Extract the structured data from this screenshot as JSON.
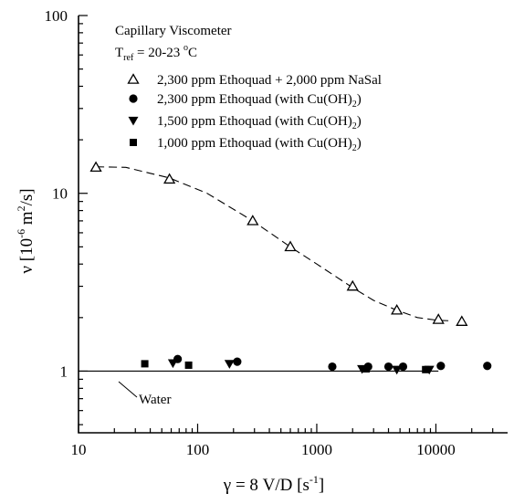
{
  "chart_data": {
    "type": "scatter",
    "x_scale": "log",
    "y_scale": "log",
    "xlim": [
      10,
      40000
    ],
    "ylim": [
      0.45,
      100
    ],
    "x_ticks": [
      10,
      100,
      1000,
      10000
    ],
    "x_tick_labels": [
      "10",
      "100",
      "1000",
      "10000"
    ],
    "y_ticks": [
      1,
      10,
      100
    ],
    "y_tick_labels": [
      "1",
      "10",
      "100"
    ],
    "xlabel": {
      "main": "γ = 8 V/D [s",
      "sup": "-1",
      "close": "]"
    },
    "ylabel": {
      "main": "ν  [10",
      "sup": "-6",
      "mid": " m",
      "sup2": "2",
      "close": "/s]"
    },
    "annotation": {
      "title": "Capillary Viscometer",
      "tref_label": "T",
      "tref_sub": "ref",
      "tref_value": " = 20-23 ",
      "tref_sup": "o",
      "tref_unit": "C"
    },
    "grid": false,
    "legend_position": "top-right",
    "series": [
      {
        "name": "2,300 ppm Ethoquad + 2,000 ppm NaSal",
        "name_sub": "",
        "name_tail": "",
        "marker": "triangle-up-open",
        "x": [
          14,
          58,
          290,
          600,
          2000,
          4700,
          10500,
          16500
        ],
        "y": [
          14,
          12,
          7,
          5,
          3,
          2.2,
          1.95,
          1.9
        ]
      },
      {
        "name": "2,300 ppm Ethoquad (with Cu(OH)",
        "name_sub": "2",
        "name_tail": ")",
        "marker": "circle-filled",
        "x": [
          68,
          215,
          1350,
          2700,
          4000,
          5300,
          11000,
          27000
        ],
        "y": [
          1.17,
          1.13,
          1.06,
          1.06,
          1.06,
          1.06,
          1.07,
          1.07
        ]
      },
      {
        "name": "1,500 ppm Ethoquad (with Cu(OH)",
        "name_sub": "2",
        "name_tail": ")",
        "marker": "triangle-down-filled",
        "x": [
          62,
          185,
          2400,
          4700,
          8800
        ],
        "y": [
          1.11,
          1.1,
          1.03,
          1.02,
          1.02
        ]
      },
      {
        "name": "1,000 ppm Ethoquad (with Cu(OH)",
        "name_sub": "2",
        "name_tail": ")",
        "marker": "square-filled",
        "x": [
          36,
          84,
          2600,
          8200
        ],
        "y": [
          1.1,
          1.08,
          1.03,
          1.02
        ]
      }
    ],
    "fit_curve": {
      "style": "dashed",
      "x": [
        14,
        25,
        58,
        120,
        290,
        600,
        1000,
        2000,
        3000,
        4700,
        7000,
        10500,
        13000
      ],
      "y": [
        14.1,
        14,
        12.2,
        10,
        7,
        5,
        4,
        2.95,
        2.5,
        2.2,
        2.0,
        1.93,
        1.92
      ]
    },
    "reference_line": {
      "label": "Water",
      "x": [
        10,
        10500
      ],
      "y": [
        1.0,
        1.0
      ]
    }
  }
}
